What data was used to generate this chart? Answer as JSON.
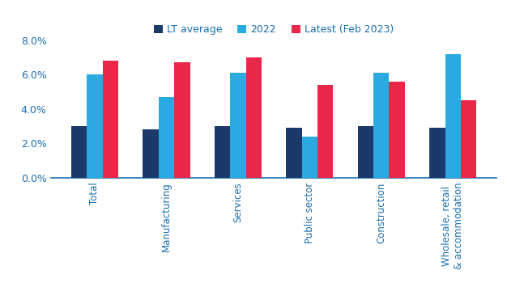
{
  "categories": [
    "Total",
    "Manufacturing",
    "Services",
    "Public sector",
    "Construction",
    "Wholesale, retail\n& accommodation"
  ],
  "lt_average": [
    0.03,
    0.028,
    0.03,
    0.029,
    0.03,
    0.029
  ],
  "val_2022": [
    0.06,
    0.047,
    0.061,
    0.024,
    0.061,
    0.072
  ],
  "latest": [
    0.068,
    0.067,
    0.07,
    0.054,
    0.056,
    0.045
  ],
  "colors": {
    "lt_average": "#1b3a6b",
    "val_2022": "#29abe2",
    "latest": "#e8274b"
  },
  "legend_labels": [
    "LT average",
    "2022",
    "Latest (Feb 2023)"
  ],
  "ylim": [
    0.0,
    0.08
  ],
  "yticks": [
    0.0,
    0.02,
    0.04,
    0.06,
    0.08
  ],
  "bar_width": 0.22,
  "tick_label_color": "#1a6faf",
  "spine_color": "#1a6faf"
}
